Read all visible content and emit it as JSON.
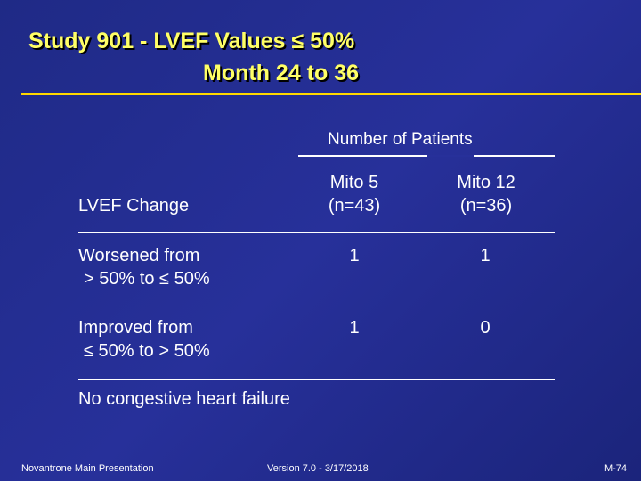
{
  "title": {
    "line1": "Study 901 - LVEF Values ≤ 50%",
    "line2": "Month 24 to 36"
  },
  "table": {
    "group_header": "Number of Patients",
    "column_label": "LVEF Change",
    "columns": [
      {
        "line1": "Mito 5",
        "line2": "(n=43)"
      },
      {
        "line1": "Mito 12",
        "line2": "(n=36)"
      }
    ],
    "rows": [
      {
        "label_line1": "Worsened from",
        "label_line2": "> 50% to ≤ 50%",
        "values": [
          "1",
          "1"
        ]
      },
      {
        "label_line1": "Improved from",
        "label_line2": "≤ 50% to > 50%",
        "values": [
          "1",
          "0"
        ]
      }
    ]
  },
  "note": "No congestive heart failure",
  "footer": {
    "left": "Novantrone Main Presentation",
    "center": "Version 7.0 - 3/17/2018",
    "right": "M-74"
  },
  "colors": {
    "background": "#27309a",
    "title": "#ffff66",
    "title_rule": "#ffd800",
    "text": "#ffffff"
  }
}
